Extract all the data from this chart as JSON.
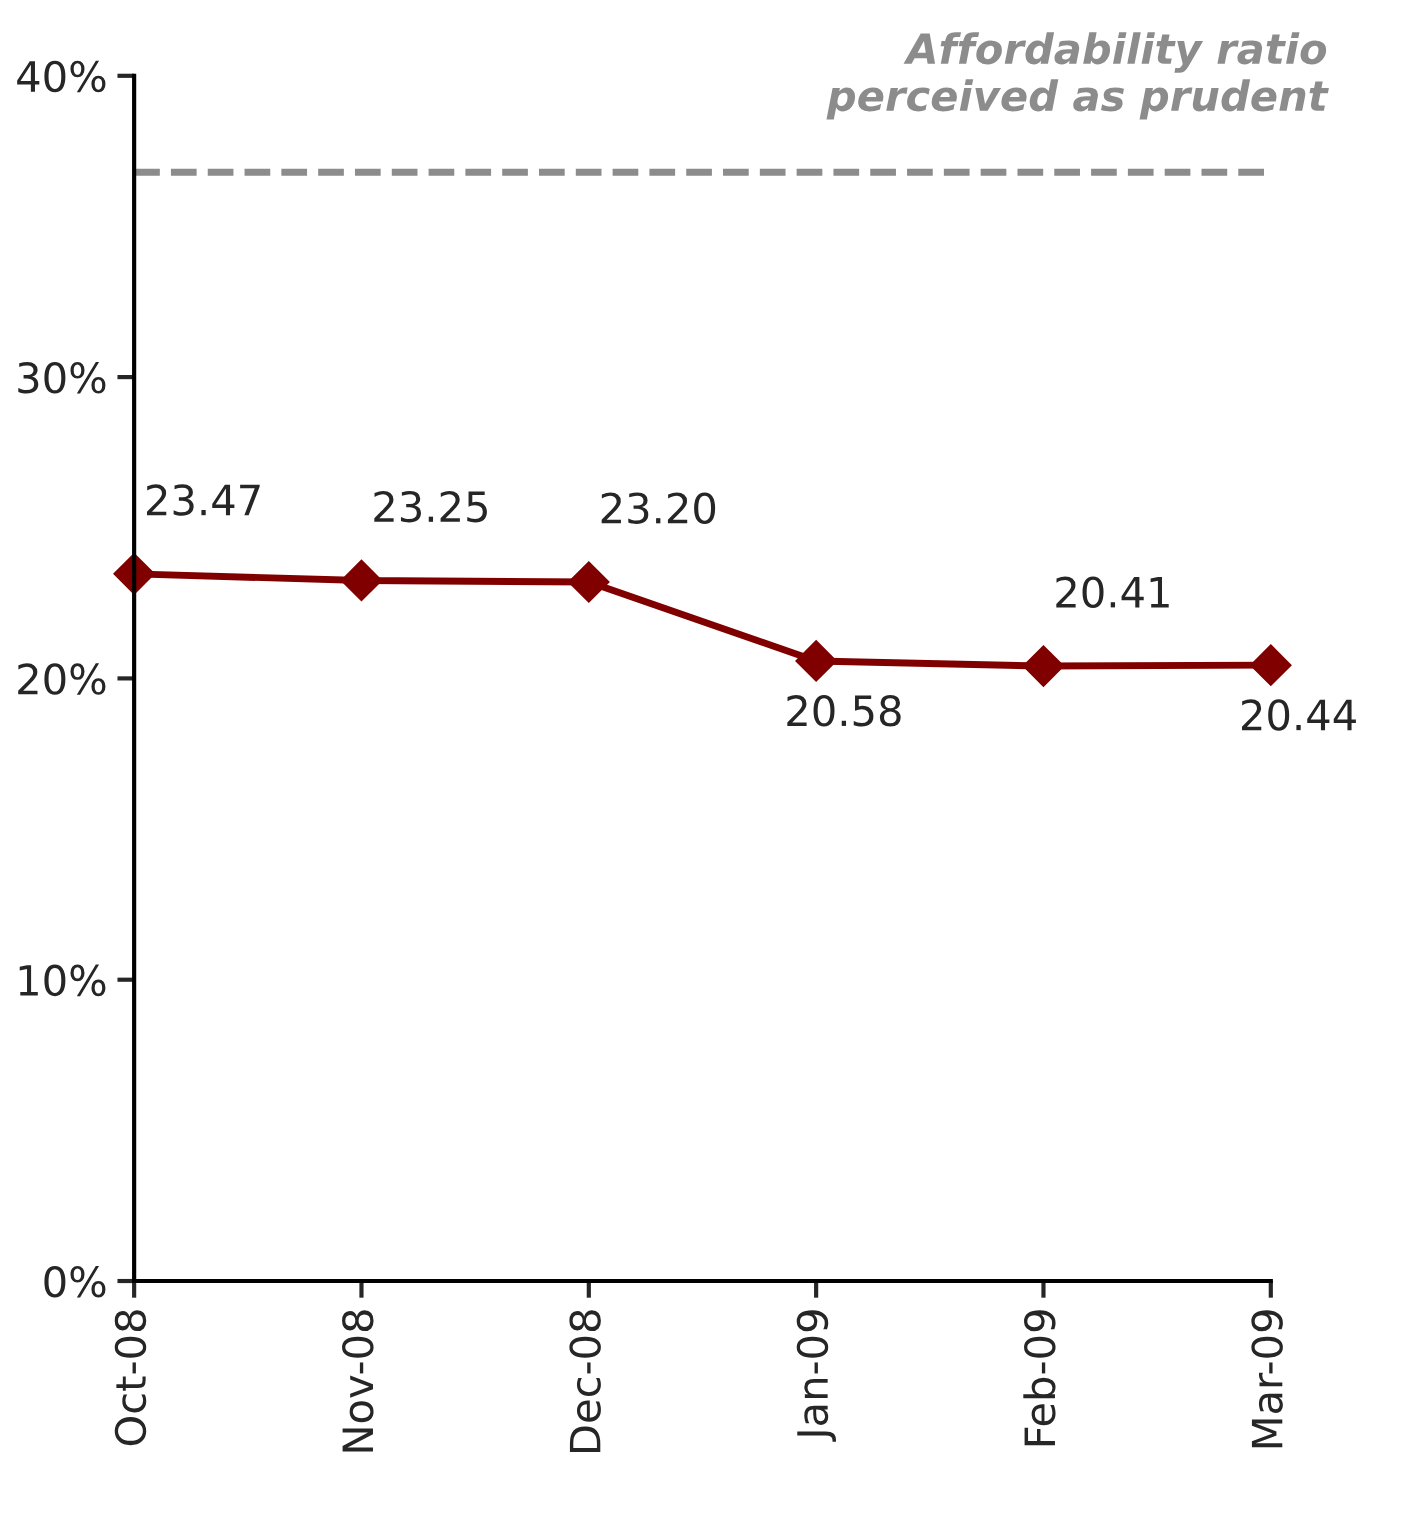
{
  "chart_data": {
    "type": "line",
    "categories": [
      "Oct-08",
      "Nov-08",
      "Dec-08",
      "Jan-09",
      "Feb-09",
      "Mar-09"
    ],
    "series": [
      {
        "color": "#800000",
        "values": [
          23.47,
          23.25,
          23.2,
          20.58,
          20.41,
          20.44
        ],
        "value_labels": [
          "23.47",
          "23.25",
          "23.20",
          "20.58",
          "20.41",
          "20.44"
        ]
      }
    ],
    "ylim": [
      0,
      40
    ],
    "yticks": [
      {
        "value": 0,
        "label": "0%"
      },
      {
        "value": 10,
        "label": "10%"
      },
      {
        "value": 20,
        "label": "20%"
      },
      {
        "value": 30,
        "label": "30%"
      },
      {
        "value": 40,
        "label": "40%"
      }
    ],
    "ref_lines": [
      {
        "axis": "y",
        "value": 36.8,
        "label": "Affordability ratio\nperceived as prudent",
        "color": "#8c8c8c",
        "line_style": "dashed"
      }
    ],
    "marker": "diamond",
    "line_style": "solid",
    "grid": false,
    "legend": false
  }
}
